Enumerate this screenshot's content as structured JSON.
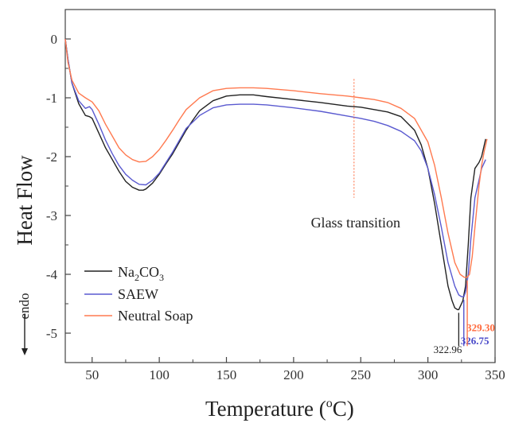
{
  "chart_data": {
    "type": "line",
    "xlabel_main": "Temperature (",
    "xlabel_sup": "o",
    "xlabel_end": "C)",
    "ylabel": "Heat Flow",
    "endo_label": "endo",
    "xlim": [
      30,
      350
    ],
    "ylim": [
      -5.5,
      0.5
    ],
    "x_ticks": [
      50,
      100,
      150,
      200,
      250,
      300,
      350
    ],
    "y_ticks": [
      0,
      -1,
      -2,
      -3,
      -4,
      -5
    ],
    "x_tick_labels": [
      "50",
      "100",
      "150",
      "200",
      "250",
      "300",
      "350"
    ],
    "y_tick_labels": [
      "0",
      "-1",
      "-2",
      "-3",
      "-4",
      "-5"
    ],
    "legend": {
      "position": "bottom-left",
      "entries": [
        {
          "name_main": "Na",
          "sub1": "2",
          "mid": "CO",
          "sub2": "3",
          "color": "#222222"
        },
        {
          "name_main": "SAEW",
          "color": "#5a5ad0"
        },
        {
          "name_main": "Neutral Soap",
          "color": "#ff7a50"
        }
      ]
    },
    "annotation": {
      "text": "Glass transition",
      "x": 245
    },
    "peak_labels": [
      {
        "text": "322.96",
        "x": 322.96,
        "color": "#222222"
      },
      {
        "text": "326.75",
        "x": 326.75,
        "color": "#4646c8"
      },
      {
        "text": "329.30",
        "x": 329.3,
        "color": "#ff6a3d"
      }
    ],
    "series": [
      {
        "name": "Na2CO3",
        "color": "#222222",
        "x": [
          30,
          32,
          35,
          40,
          45,
          48,
          50,
          55,
          60,
          65,
          70,
          75,
          80,
          85,
          88,
          90,
          95,
          100,
          105,
          110,
          115,
          120,
          125,
          130,
          140,
          150,
          160,
          170,
          180,
          200,
          220,
          240,
          250,
          260,
          270,
          280,
          290,
          295,
          300,
          305,
          310,
          315,
          318,
          320,
          322,
          322.96,
          324,
          326,
          328,
          330,
          332,
          335,
          338,
          340,
          342,
          343
        ],
        "y": [
          0,
          -0.35,
          -0.75,
          -1.1,
          -1.3,
          -1.32,
          -1.35,
          -1.6,
          -1.85,
          -2.05,
          -2.25,
          -2.42,
          -2.52,
          -2.57,
          -2.57,
          -2.55,
          -2.45,
          -2.3,
          -2.12,
          -1.95,
          -1.75,
          -1.55,
          -1.38,
          -1.22,
          -1.05,
          -0.97,
          -0.95,
          -0.95,
          -0.98,
          -1.03,
          -1.08,
          -1.14,
          -1.16,
          -1.2,
          -1.24,
          -1.32,
          -1.55,
          -1.8,
          -2.2,
          -2.8,
          -3.5,
          -4.2,
          -4.45,
          -4.57,
          -4.6,
          -4.6,
          -4.55,
          -4.45,
          -4.2,
          -3.5,
          -2.7,
          -2.2,
          -2.1,
          -2.0,
          -1.8,
          -1.7
        ]
      },
      {
        "name": "SAEW",
        "color": "#5a5ad0",
        "x": [
          30,
          32,
          35,
          40,
          45,
          48,
          50,
          52,
          55,
          60,
          65,
          70,
          75,
          80,
          85,
          90,
          95,
          100,
          105,
          110,
          115,
          120,
          130,
          140,
          150,
          160,
          170,
          180,
          200,
          220,
          240,
          250,
          260,
          270,
          280,
          290,
          295,
          300,
          305,
          310,
          315,
          320,
          323,
          325,
          326.75,
          328,
          330,
          332,
          335,
          338,
          340,
          343
        ],
        "y": [
          0,
          -0.35,
          -0.75,
          -1.05,
          -1.18,
          -1.15,
          -1.2,
          -1.3,
          -1.45,
          -1.72,
          -1.95,
          -2.15,
          -2.3,
          -2.4,
          -2.47,
          -2.48,
          -2.4,
          -2.28,
          -2.1,
          -1.92,
          -1.72,
          -1.52,
          -1.3,
          -1.17,
          -1.12,
          -1.11,
          -1.11,
          -1.12,
          -1.17,
          -1.23,
          -1.31,
          -1.35,
          -1.4,
          -1.47,
          -1.57,
          -1.73,
          -1.9,
          -2.2,
          -2.65,
          -3.2,
          -3.8,
          -4.2,
          -4.35,
          -4.38,
          -4.38,
          -4.3,
          -4.0,
          -3.4,
          -2.7,
          -2.4,
          -2.2,
          -2.05
        ]
      },
      {
        "name": "Neutral Soap",
        "color": "#ff7a50",
        "x": [
          30,
          32,
          35,
          40,
          45,
          50,
          55,
          60,
          65,
          70,
          75,
          80,
          85,
          90,
          95,
          100,
          105,
          110,
          115,
          120,
          130,
          140,
          150,
          160,
          170,
          180,
          200,
          220,
          240,
          250,
          260,
          270,
          280,
          290,
          300,
          305,
          310,
          315,
          320,
          324,
          327,
          329.3,
          331,
          333,
          335,
          338,
          340,
          342,
          344
        ],
        "y": [
          0,
          -0.4,
          -0.7,
          -0.92,
          -1.0,
          -1.07,
          -1.22,
          -1.45,
          -1.65,
          -1.85,
          -1.97,
          -2.05,
          -2.09,
          -2.08,
          -2.0,
          -1.88,
          -1.72,
          -1.55,
          -1.37,
          -1.2,
          -1.0,
          -0.88,
          -0.84,
          -0.83,
          -0.83,
          -0.84,
          -0.88,
          -0.93,
          -0.97,
          -1.0,
          -1.03,
          -1.08,
          -1.18,
          -1.35,
          -1.75,
          -2.15,
          -2.7,
          -3.3,
          -3.8,
          -4.0,
          -4.05,
          -4.05,
          -4.0,
          -3.7,
          -3.2,
          -2.5,
          -2.15,
          -1.9,
          -1.7
        ]
      }
    ]
  }
}
